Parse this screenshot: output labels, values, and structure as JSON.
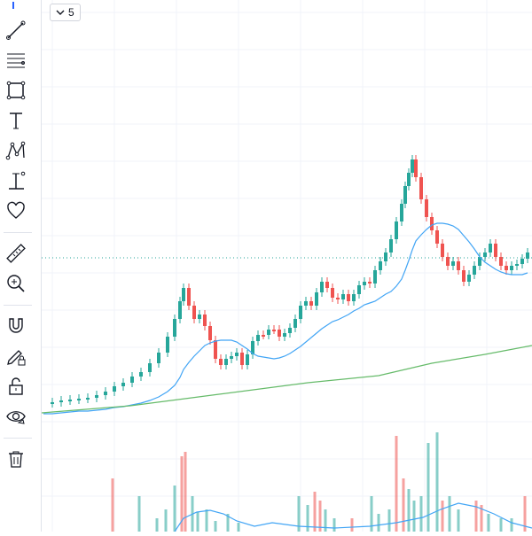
{
  "interval": {
    "value": "5"
  },
  "toolbar": {
    "tools": [
      "trend-line-icon",
      "fib-retracement-icon",
      "rectangle-icon",
      "text-icon",
      "pattern-icon",
      "price-range-icon",
      "heart-icon",
      "ruler-icon",
      "zoom-in-icon",
      "magnet-icon",
      "lock-drawing-icon",
      "unlock-icon",
      "eye-icon",
      "trash-icon"
    ]
  },
  "colors": {
    "up": "#26a69a",
    "down": "#ef5350",
    "ma_fast": "#42a5f5",
    "ma_slow": "#66bb6a",
    "price_line": "#26a69a",
    "grid": "#f0f3fa"
  },
  "chart_data": {
    "type": "candlestick",
    "price_line": 291,
    "series": [
      {
        "o": 454,
        "h": 452,
        "l": 457,
        "c": 455
      }
    ]
  }
}
